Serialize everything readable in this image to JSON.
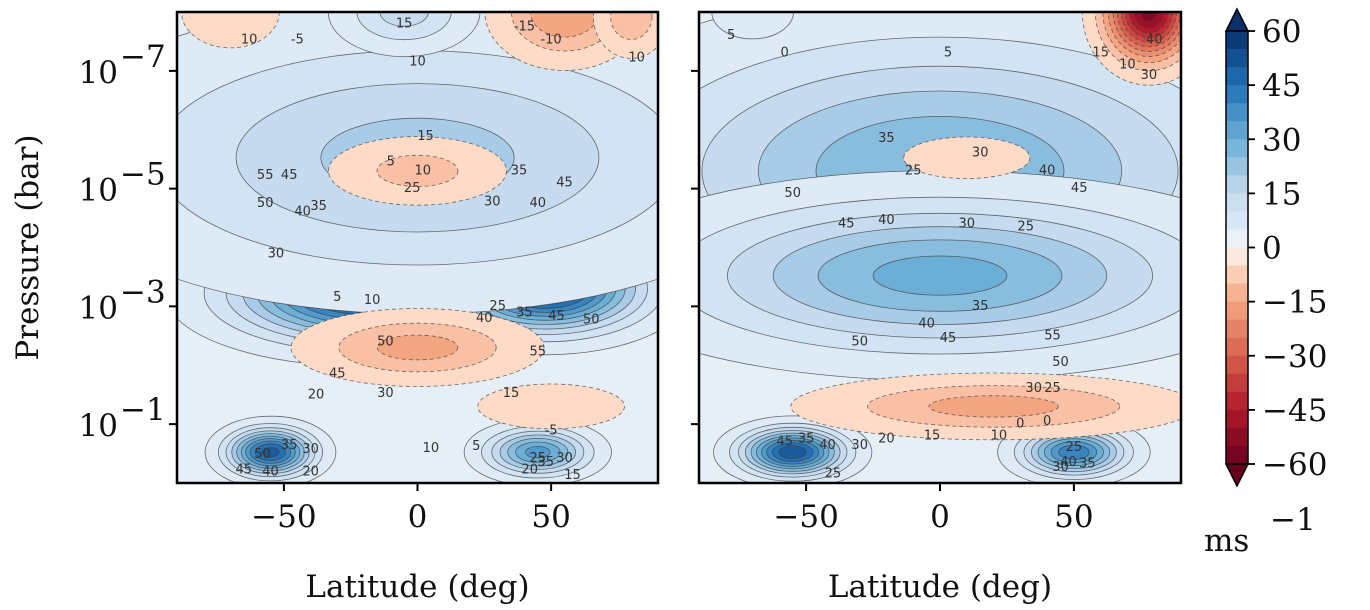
{
  "chart_data": [
    {
      "type": "heatmap",
      "panel": "left",
      "xlabel": "Latitude (deg)",
      "ylabel": "Pressure (bar)",
      "xlim": [
        -90,
        90
      ],
      "x_ticks": [
        -50,
        0,
        50
      ],
      "x_tick_labels": [
        "−50",
        "0",
        "50"
      ],
      "y_scale": "log",
      "ylim": [
        1e-08,
        1
      ],
      "y_ticks": [
        1e-07,
        1e-05,
        0.001,
        0.1
      ],
      "y_tick_labels": [
        "10",
        "10",
        "10",
        "10"
      ],
      "y_tick_exponents": [
        "−7",
        "−5",
        "−3",
        "−1"
      ],
      "blobs": [
        {
          "lat": -57,
          "p": 1e-05,
          "value": 58,
          "width_deg": 14,
          "width_dex": 0.55
        },
        {
          "lat": 52,
          "p": 1e-05,
          "value": 48,
          "width_deg": 15,
          "width_dex": 0.5
        },
        {
          "lat": -20,
          "p": 0.0006,
          "value": 55,
          "width_deg": 30,
          "width_dex": 0.5
        },
        {
          "lat": 48,
          "p": 0.0005,
          "value": 56,
          "width_deg": 22,
          "width_dex": 0.45
        },
        {
          "lat": -55,
          "p": 0.3,
          "value": 50,
          "width_deg": 10,
          "width_dex": 0.25
        },
        {
          "lat": 45,
          "p": 0.3,
          "value": 35,
          "width_deg": 12,
          "width_dex": 0.25
        },
        {
          "lat": 0,
          "p": 3e-06,
          "value": 20,
          "width_deg": 70,
          "width_dex": 1.3
        },
        {
          "lat": -5,
          "p": 1e-08,
          "value": 15,
          "width_deg": 15,
          "width_dex": 0.4
        },
        {
          "lat": -70,
          "p": 1e-08,
          "value": -8,
          "width_deg": 12,
          "width_dex": 0.4
        },
        {
          "lat": 55,
          "p": 1e-08,
          "value": -18,
          "width_deg": 15,
          "width_dex": 0.5
        },
        {
          "lat": 80,
          "p": 1.2e-08,
          "value": -12,
          "width_deg": 8,
          "width_dex": 0.4
        },
        {
          "lat": 50,
          "p": 0.05,
          "value": -8,
          "width_deg": 18,
          "width_dex": 0.25
        },
        {
          "lat": 0,
          "p": 5e-06,
          "value": -10,
          "width_deg": 20,
          "width_dex": 0.35
        },
        {
          "lat": 0,
          "p": 0.005,
          "value": -15,
          "width_deg": 25,
          "width_dex": 0.35
        }
      ],
      "contour_labels": [
        {
          "lat": -63,
          "p": 3e-08,
          "text": "10"
        },
        {
          "lat": -45,
          "p": 3e-08,
          "text": "-5"
        },
        {
          "lat": -5,
          "p": 1.6e-08,
          "text": "15"
        },
        {
          "lat": 0,
          "p": 7e-08,
          "text": "10"
        },
        {
          "lat": 40,
          "p": 1.8e-08,
          "text": "-15"
        },
        {
          "lat": 50,
          "p": 3e-08,
          "text": "-10"
        },
        {
          "lat": 82,
          "p": 6e-08,
          "text": "10"
        },
        {
          "lat": -57,
          "p": 6e-06,
          "text": "55"
        },
        {
          "lat": -57,
          "p": 1.8e-05,
          "text": "50"
        },
        {
          "lat": -48,
          "p": 6e-06,
          "text": "45"
        },
        {
          "lat": -43,
          "p": 2.5e-05,
          "text": "40"
        },
        {
          "lat": -37,
          "p": 2e-05,
          "text": "35"
        },
        {
          "lat": -53,
          "p": 0.00013,
          "text": "30"
        },
        {
          "lat": 3,
          "p": 1.3e-06,
          "text": "15"
        },
        {
          "lat": -10,
          "p": 3.5e-06,
          "text": "5"
        },
        {
          "lat": 2,
          "p": 5e-06,
          "text": "10"
        },
        {
          "lat": -2,
          "p": 1e-05,
          "text": "25"
        },
        {
          "lat": 28,
          "p": 1.7e-05,
          "text": "30"
        },
        {
          "lat": 38,
          "p": 5e-06,
          "text": "35"
        },
        {
          "lat": 55,
          "p": 8e-06,
          "text": "45"
        },
        {
          "lat": 45,
          "p": 1.8e-05,
          "text": "40"
        },
        {
          "lat": -30,
          "p": 0.0007,
          "text": "5"
        },
        {
          "lat": -17,
          "p": 0.0008,
          "text": "10"
        },
        {
          "lat": 30,
          "p": 0.001,
          "text": "25"
        },
        {
          "lat": 25,
          "p": 0.0016,
          "text": "40"
        },
        {
          "lat": 40,
          "p": 0.0013,
          "text": "35"
        },
        {
          "lat": 52,
          "p": 0.0015,
          "text": "45"
        },
        {
          "lat": 65,
          "p": 0.0017,
          "text": "50"
        },
        {
          "lat": -12,
          "p": 0.004,
          "text": "50"
        },
        {
          "lat": 45,
          "p": 0.006,
          "text": "55"
        },
        {
          "lat": -30,
          "p": 0.014,
          "text": "45"
        },
        {
          "lat": -12,
          "p": 0.03,
          "text": "30"
        },
        {
          "lat": -38,
          "p": 0.032,
          "text": "20"
        },
        {
          "lat": 35,
          "p": 0.03,
          "text": "15"
        },
        {
          "lat": 50,
          "p": 0.13,
          "text": "-5"
        },
        {
          "lat": 5,
          "p": 0.26,
          "text": "10"
        },
        {
          "lat": 22,
          "p": 0.24,
          "text": "5"
        },
        {
          "lat": -48,
          "p": 0.23,
          "text": "35"
        },
        {
          "lat": -40,
          "p": 0.27,
          "text": "30"
        },
        {
          "lat": -58,
          "p": 0.33,
          "text": "50"
        },
        {
          "lat": -65,
          "p": 0.6,
          "text": "45"
        },
        {
          "lat": -55,
          "p": 0.65,
          "text": "40"
        },
        {
          "lat": -40,
          "p": 0.65,
          "text": "20"
        },
        {
          "lat": 45,
          "p": 0.38,
          "text": "25"
        },
        {
          "lat": 55,
          "p": 0.38,
          "text": "30"
        },
        {
          "lat": 48,
          "p": 0.45,
          "text": "35"
        },
        {
          "lat": 42,
          "p": 0.6,
          "text": "20"
        },
        {
          "lat": 58,
          "p": 0.75,
          "text": "15"
        }
      ]
    },
    {
      "type": "heatmap",
      "panel": "right",
      "xlabel": "Latitude (deg)",
      "ylabel": "",
      "xlim": [
        -90,
        90
      ],
      "x_ticks": [
        -50,
        0,
        50
      ],
      "x_tick_labels": [
        "−50",
        "0",
        "50"
      ],
      "y_scale": "log",
      "ylim": [
        1e-08,
        1
      ],
      "y_ticks": [
        1e-07,
        1e-05,
        0.001,
        0.1
      ],
      "blobs": [
        {
          "lat": -45,
          "p": 1.2e-05,
          "value": 56,
          "width_deg": 20,
          "width_dex": 0.6
        },
        {
          "lat": 48,
          "p": 1e-05,
          "value": 50,
          "width_deg": 12,
          "width_dex": 0.5
        },
        {
          "lat": -25,
          "p": 0.0005,
          "value": 52,
          "width_deg": 30,
          "width_dex": 0.45
        },
        {
          "lat": 42,
          "p": 0.0004,
          "value": 56,
          "width_deg": 22,
          "width_dex": 0.45
        },
        {
          "lat": -55,
          "p": 0.3,
          "value": 52,
          "width_deg": 12,
          "width_dex": 0.25
        },
        {
          "lat": 50,
          "p": 0.3,
          "value": 42,
          "width_deg": 12,
          "width_dex": 0.25
        },
        {
          "lat": 0,
          "p": 5e-06,
          "value": 28,
          "width_deg": 70,
          "width_dex": 1.4
        },
        {
          "lat": 0,
          "p": 0.0003,
          "value": 30,
          "width_deg": 60,
          "width_dex": 0.8
        },
        {
          "lat": 78,
          "p": 1e-08,
          "value": -55,
          "width_deg": 10,
          "width_dex": 0.5
        },
        {
          "lat": 10,
          "p": 3e-06,
          "value": -5,
          "width_deg": 20,
          "width_dex": 0.3
        },
        {
          "lat": 20,
          "p": 0.05,
          "value": -15,
          "width_deg": 40,
          "width_dex": 0.3
        },
        {
          "lat": -70,
          "p": 1e-08,
          "value": 8,
          "width_deg": 10,
          "width_dex": 0.3
        }
      ],
      "contour_labels": [
        {
          "lat": -78,
          "p": 2.5e-08,
          "text": "5"
        },
        {
          "lat": -58,
          "p": 5e-08,
          "text": "0"
        },
        {
          "lat": 3,
          "p": 5e-08,
          "text": "5"
        },
        {
          "lat": 60,
          "p": 5e-08,
          "text": "15"
        },
        {
          "lat": 70,
          "p": 8e-08,
          "text": "10"
        },
        {
          "lat": 80,
          "p": 3e-08,
          "text": "40"
        },
        {
          "lat": 78,
          "p": 1.2e-07,
          "text": "30"
        },
        {
          "lat": -20,
          "p": 1.4e-06,
          "text": "35"
        },
        {
          "lat": 15,
          "p": 2.5e-06,
          "text": "30"
        },
        {
          "lat": -55,
          "p": 1.2e-05,
          "text": "50"
        },
        {
          "lat": -10,
          "p": 5e-06,
          "text": "25"
        },
        {
          "lat": 40,
          "p": 5e-06,
          "text": "40"
        },
        {
          "lat": 52,
          "p": 1e-05,
          "text": "45"
        },
        {
          "lat": -35,
          "p": 4e-05,
          "text": "45"
        },
        {
          "lat": -20,
          "p": 3.5e-05,
          "text": "40"
        },
        {
          "lat": 10,
          "p": 4e-05,
          "text": "30"
        },
        {
          "lat": 32,
          "p": 4.5e-05,
          "text": "25"
        },
        {
          "lat": 15,
          "p": 0.001,
          "text": "35"
        },
        {
          "lat": -5,
          "p": 0.002,
          "text": "40"
        },
        {
          "lat": 3,
          "p": 0.0035,
          "text": "45"
        },
        {
          "lat": -30,
          "p": 0.004,
          "text": "50"
        },
        {
          "lat": 42,
          "p": 0.0032,
          "text": "55"
        },
        {
          "lat": 45,
          "p": 0.009,
          "text": "50"
        },
        {
          "lat": 35,
          "p": 0.025,
          "text": "30"
        },
        {
          "lat": 42,
          "p": 0.025,
          "text": "25"
        },
        {
          "lat": -20,
          "p": 0.18,
          "text": "20"
        },
        {
          "lat": -3,
          "p": 0.16,
          "text": "15"
        },
        {
          "lat": 22,
          "p": 0.16,
          "text": "10"
        },
        {
          "lat": 30,
          "p": 0.1,
          "text": "0"
        },
        {
          "lat": 40,
          "p": 0.09,
          "text": "0"
        },
        {
          "lat": 50,
          "p": 0.25,
          "text": "25"
        },
        {
          "lat": -58,
          "p": 0.2,
          "text": "45"
        },
        {
          "lat": -50,
          "p": 0.18,
          "text": "35"
        },
        {
          "lat": -42,
          "p": 0.23,
          "text": "40"
        },
        {
          "lat": -30,
          "p": 0.23,
          "text": "30"
        },
        {
          "lat": -40,
          "p": 0.7,
          "text": "25"
        },
        {
          "lat": 48,
          "p": 0.45,
          "text": "40"
        },
        {
          "lat": 55,
          "p": 0.48,
          "text": "35"
        },
        {
          "lat": 45,
          "p": 0.55,
          "text": "30"
        }
      ]
    }
  ],
  "colorbar": {
    "label": "ms",
    "label_exponent": "−1",
    "vmin": -60,
    "vmax": 60,
    "level_step": 5,
    "extend": "both",
    "cmap": "RdBu",
    "ticks": [
      60,
      45,
      30,
      15,
      0,
      -15,
      -30,
      -45,
      -60
    ],
    "tick_labels": [
      "60",
      "45",
      "30",
      "15",
      "0",
      "−15",
      "−30",
      "−45",
      "−60"
    ]
  }
}
